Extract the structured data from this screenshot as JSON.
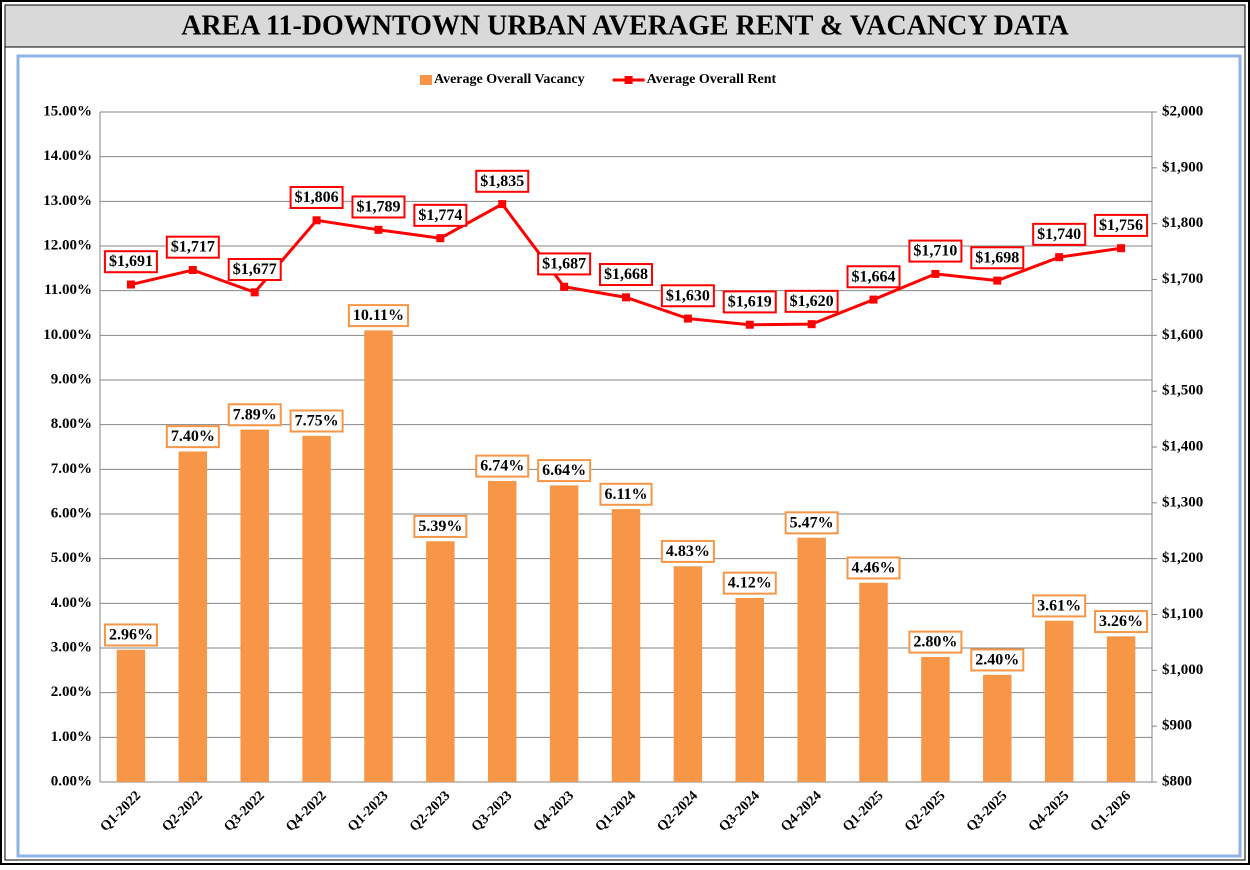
{
  "chart_data": {
    "type": "bar-line",
    "title": "AREA 11-DOWNTOWN URBAN AVERAGE RENT & VACANCY DATA",
    "categories": [
      "Q1-2022",
      "Q2-2022",
      "Q3-2022",
      "Q4-2022",
      "Q1-2023",
      "Q2-2023",
      "Q3-2023",
      "Q4-2023",
      "Q1-2024",
      "Q2-2024",
      "Q3-2024",
      "Q4-2024",
      "Q1-2025",
      "Q2-2025",
      "Q3-2025",
      "Q4-2025",
      "Q1-2026"
    ],
    "series": [
      {
        "name": "Average Overall Vacancy",
        "type": "bar",
        "color": "#f79646",
        "label_border": "#f79646",
        "values": [
          2.96,
          7.4,
          7.89,
          7.75,
          10.11,
          5.39,
          6.74,
          6.64,
          6.11,
          4.83,
          4.12,
          5.47,
          4.46,
          2.8,
          2.4,
          3.61,
          3.26
        ],
        "value_labels": [
          "2.96%",
          "7.40%",
          "7.89%",
          "7.75%",
          "10.11%",
          "5.39%",
          "6.74%",
          "6.64%",
          "6.11%",
          "4.83%",
          "4.12%",
          "5.47%",
          "4.46%",
          "2.80%",
          "2.40%",
          "3.61%",
          "3.26%"
        ]
      },
      {
        "name": "Average Overall Rent",
        "type": "line",
        "axis": "y2",
        "color": "#ff0000",
        "label_border": "#ff0000",
        "values": [
          1691,
          1717,
          1677,
          1806,
          1789,
          1774,
          1835,
          1687,
          1668,
          1630,
          1619,
          1620,
          1664,
          1710,
          1698,
          1740,
          1756
        ],
        "value_labels": [
          "$1,691",
          "$1,717",
          "$1,677",
          "$1,806",
          "$1,789",
          "$1,774",
          "$1,835",
          "$1,687",
          "$1,668",
          "$1,630",
          "$1,619",
          "$1,620",
          "$1,664",
          "$1,710",
          "$1,698",
          "$1,740",
          "$1,756"
        ]
      }
    ],
    "ylim": [
      0,
      15
    ],
    "yticks": [
      {
        "value": 0,
        "label": "0.00%"
      },
      {
        "value": 1,
        "label": "1.00%"
      },
      {
        "value": 2,
        "label": "2.00%"
      },
      {
        "value": 3,
        "label": "3.00%"
      },
      {
        "value": 4,
        "label": "4.00%"
      },
      {
        "value": 5,
        "label": "5.00%"
      },
      {
        "value": 6,
        "label": "6.00%"
      },
      {
        "value": 7,
        "label": "7.00%"
      },
      {
        "value": 8,
        "label": "8.00%"
      },
      {
        "value": 9,
        "label": "9.00%"
      },
      {
        "value": 10,
        "label": "10.00%"
      },
      {
        "value": 11,
        "label": "11.00%"
      },
      {
        "value": 12,
        "label": "12.00%"
      },
      {
        "value": 13,
        "label": "13.00%"
      },
      {
        "value": 14,
        "label": "14.00%"
      },
      {
        "value": 15,
        "label": "15.00%"
      }
    ],
    "y2lim": [
      800,
      2000
    ],
    "y2ticks": [
      {
        "value": 800,
        "label": "$800"
      },
      {
        "value": 900,
        "label": "$900"
      },
      {
        "value": 1000,
        "label": "$1,000"
      },
      {
        "value": 1100,
        "label": "$1,100"
      },
      {
        "value": 1200,
        "label": "$1,200"
      },
      {
        "value": 1300,
        "label": "$1,300"
      },
      {
        "value": 1400,
        "label": "$1,400"
      },
      {
        "value": 1500,
        "label": "$1,500"
      },
      {
        "value": 1600,
        "label": "$1,600"
      },
      {
        "value": 1700,
        "label": "$1,700"
      },
      {
        "value": 1800,
        "label": "$1,800"
      },
      {
        "value": 1900,
        "label": "$1,900"
      },
      {
        "value": 2000,
        "label": "$2,000"
      }
    ],
    "grid": true,
    "legend": "top"
  }
}
